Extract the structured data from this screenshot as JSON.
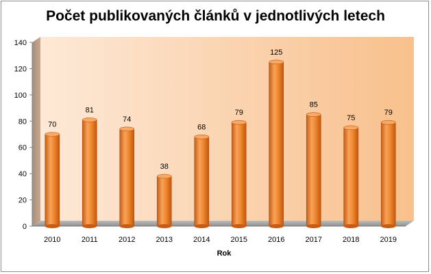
{
  "chart_data": {
    "type": "bar",
    "title": "Počet publikovaných článků v jednotlivých letech",
    "xlabel": "Rok",
    "ylabel": "",
    "categories": [
      "2010",
      "2011",
      "2012",
      "2013",
      "2014",
      "2015",
      "2016",
      "2017",
      "2018",
      "2019"
    ],
    "values": [
      70,
      81,
      74,
      38,
      68,
      79,
      125,
      85,
      75,
      79
    ],
    "ylim": [
      0,
      140
    ],
    "yticks": [
      "0",
      "20",
      "40",
      "60",
      "80",
      "100",
      "120",
      "140"
    ],
    "data_labels": [
      "70",
      "81",
      "74",
      "38",
      "68",
      "79",
      "125",
      "85",
      "75",
      "79"
    ],
    "grid": false,
    "legend": "none",
    "colors": {
      "bar": "#f28e2f",
      "bar_dark": "#c2570f",
      "bar_light": "#fbc189",
      "wall_light": "#fdf1e6",
      "wall_dark": "#f9c392",
      "floor": "#a6a6a6"
    }
  }
}
